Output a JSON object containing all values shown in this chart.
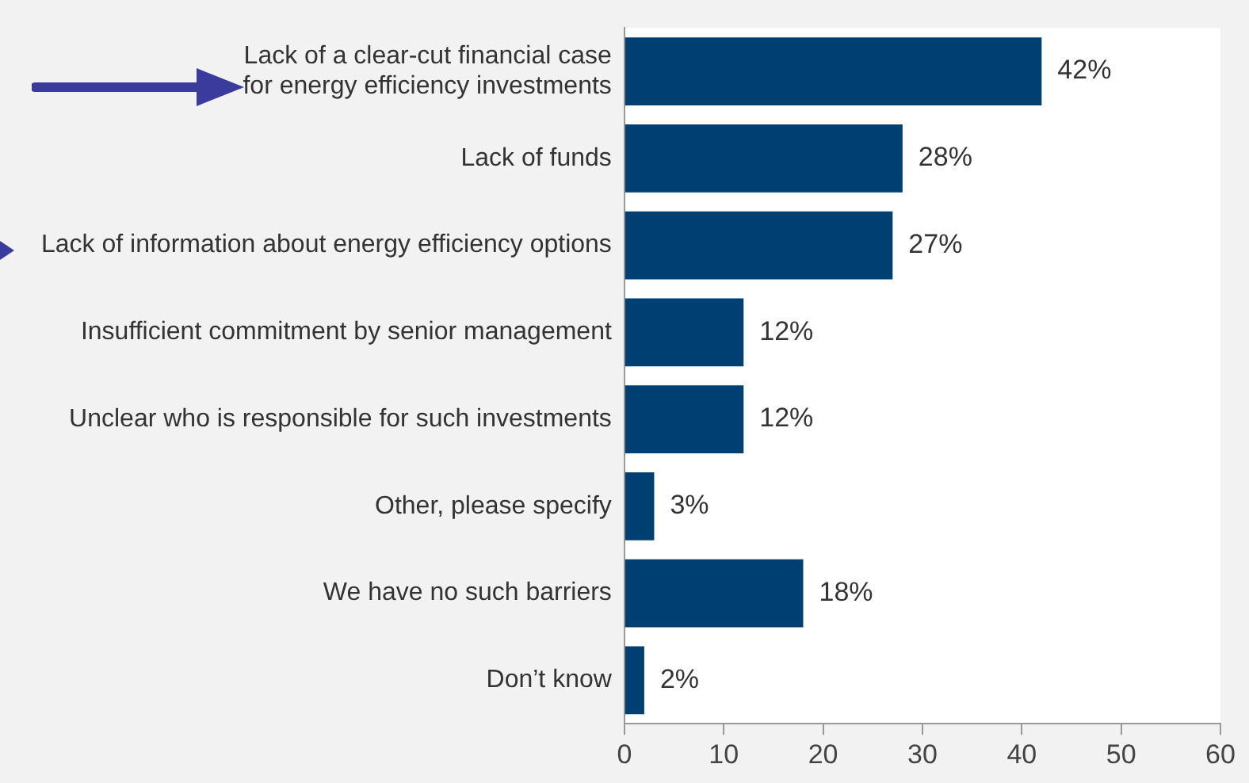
{
  "chart_data": {
    "type": "bar",
    "orientation": "horizontal",
    "categories": [
      "Lack of a clear-cut financial case for energy efficiency investments",
      "Lack of funds",
      "Lack of information about energy efficiency options",
      "Insufficient commitment by senior management",
      "Unclear who is responsible for such investments",
      "Other, please specify",
      "We have no such barriers",
      "Don’t know"
    ],
    "values": [
      42,
      28,
      27,
      12,
      12,
      3,
      18,
      2
    ],
    "value_labels": [
      "42%",
      "28%",
      "27%",
      "12%",
      "12%",
      "3%",
      "18%",
      "2%"
    ],
    "color": "#003f72",
    "xlim": [
      0,
      60
    ],
    "xticks": [
      0,
      10,
      20,
      30,
      40,
      50,
      60
    ],
    "grid": false,
    "legend": false
  }
}
